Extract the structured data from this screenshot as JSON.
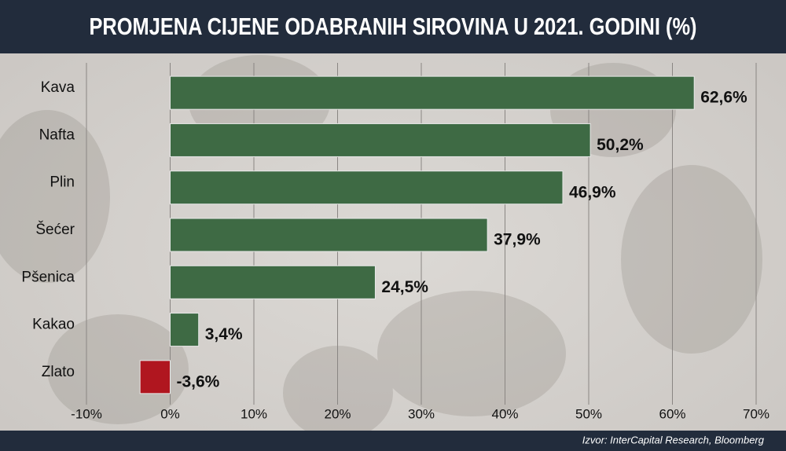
{
  "chart_data": {
    "type": "bar",
    "orientation": "horizontal",
    "title": "PROMJENA CIJENE ODABRANIH SIROVINA U 2021. GODINI (%)",
    "categories": [
      "Kava",
      "Nafta",
      "Plin",
      "Šećer",
      "Pšenica",
      "Kakao",
      "Zlato"
    ],
    "values": [
      62.6,
      50.2,
      46.9,
      37.9,
      24.5,
      3.4,
      -3.6
    ],
    "value_labels": [
      "62,6%",
      "50,2%",
      "46,9%",
      "37,9%",
      "24,5%",
      "3,4%",
      "-3,6%"
    ],
    "color": "#3e6a44",
    "negative_color": "#b0161f",
    "xlim": [
      -10,
      70
    ],
    "xticks": [
      {
        "value": -10,
        "label": "-10%"
      },
      {
        "value": 0,
        "label": "0%"
      },
      {
        "value": 10,
        "label": "10%"
      },
      {
        "value": 20,
        "label": "20%"
      },
      {
        "value": 30,
        "label": "30%"
      },
      {
        "value": 40,
        "label": "40%"
      },
      {
        "value": 50,
        "label": "50%"
      },
      {
        "value": 60,
        "label": "60%"
      },
      {
        "value": 70,
        "label": "70%"
      }
    ],
    "grid": true,
    "source": "Izvor: InterCapital Research, Bloomberg"
  }
}
